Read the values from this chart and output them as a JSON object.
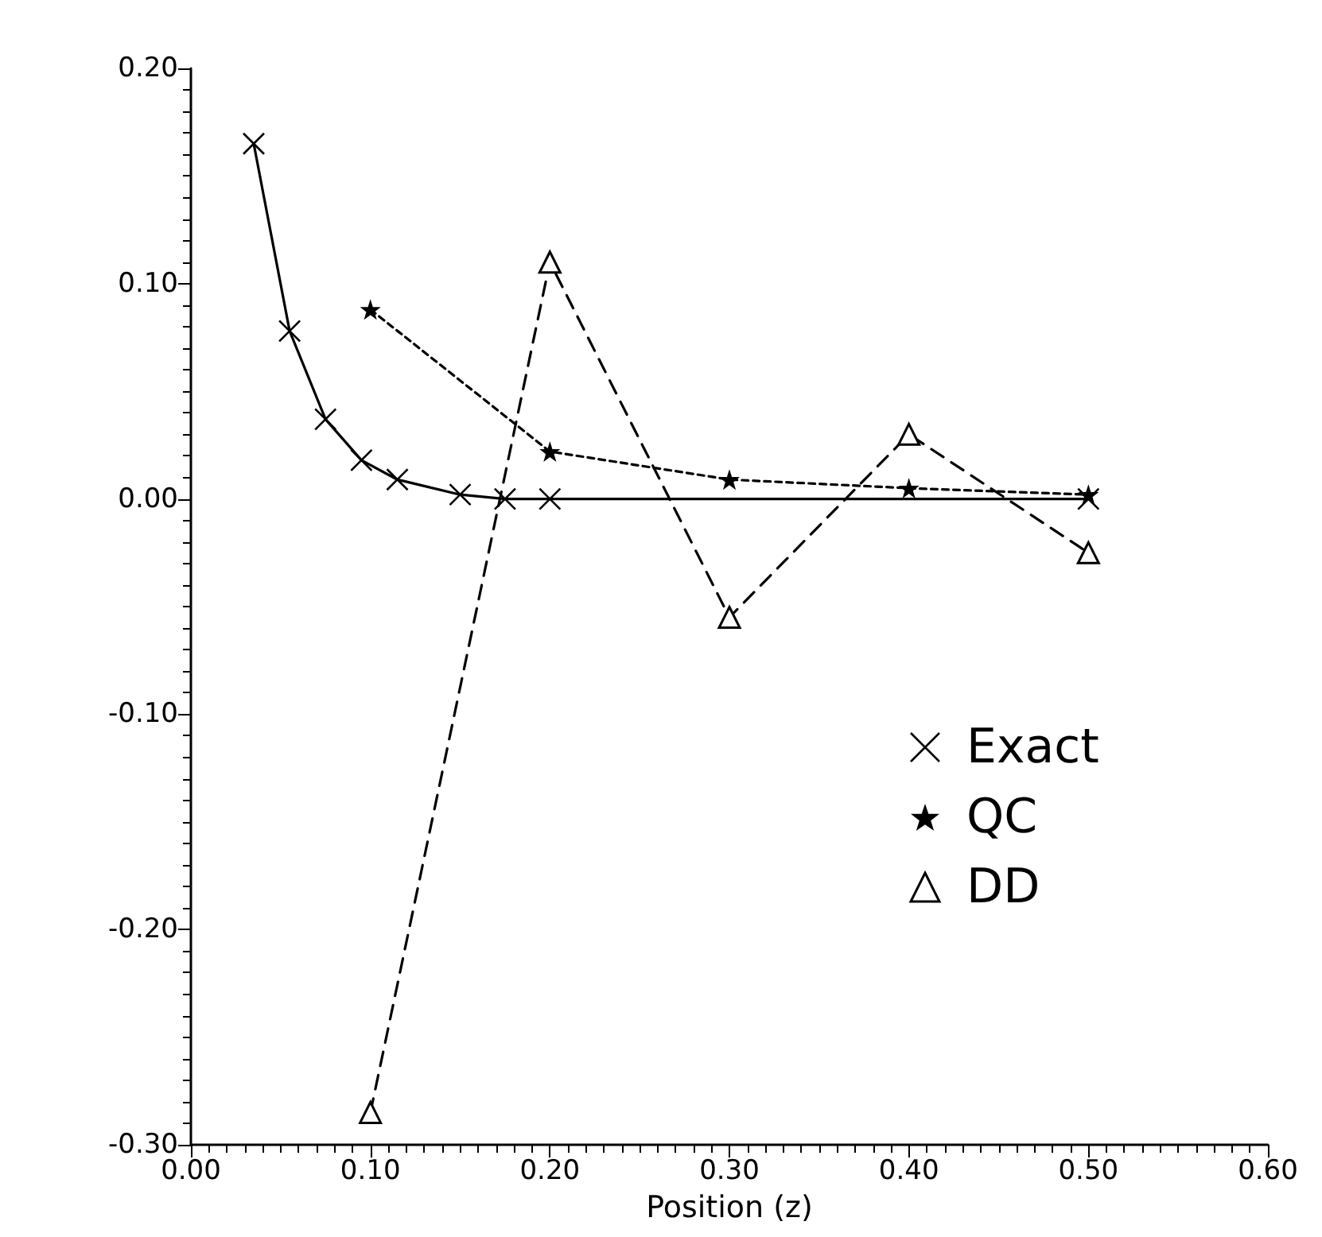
{
  "chart_data": {
    "type": "line",
    "xlabel": "Position (z)",
    "xlim": [
      0,
      0.6
    ],
    "xticks": [
      {
        "value": 0,
        "label": "0.00"
      },
      {
        "value": 0.1,
        "label": "0.10"
      },
      {
        "value": 0.2,
        "label": "0.20"
      },
      {
        "value": 0.3,
        "label": "0.30"
      },
      {
        "value": 0.4,
        "label": "0.40"
      },
      {
        "value": 0.5,
        "label": "0.50"
      },
      {
        "value": 0.6,
        "label": "0.60"
      }
    ],
    "ylim": [
      -0.3,
      0.2
    ],
    "yticks": [
      {
        "value": -0.3,
        "label": "-0.30"
      },
      {
        "value": -0.2,
        "label": "-0.20"
      },
      {
        "value": -0.1,
        "label": "-0.10"
      },
      {
        "value": 0,
        "label": "0.00"
      },
      {
        "value": 0.1,
        "label": "0.10"
      },
      {
        "value": 0.2,
        "label": "0.20"
      }
    ],
    "grid": false,
    "legend": "right",
    "series": [
      {
        "name": "Exact",
        "color": "#000000",
        "marker": "cross",
        "line_style": "solid",
        "x": [
          0.035,
          0.055,
          0.075,
          0.095,
          0.115,
          0.15,
          0.175,
          0.2,
          0.5
        ],
        "values": [
          0.165,
          0.078,
          0.037,
          0.018,
          0.009,
          0.002,
          0,
          0,
          0
        ]
      },
      {
        "name": "QC",
        "color": "#000000",
        "marker": "star",
        "line_style": "dotted",
        "x": [
          0.1,
          0.2,
          0.3,
          0.4,
          0.5
        ],
        "values": [
          0.088,
          0.022,
          0.009,
          0.005,
          0.002
        ]
      },
      {
        "name": "DD",
        "color": "#000000",
        "marker": "triangle",
        "line_style": "dashed",
        "x": [
          0.1,
          0.2,
          0.3,
          0.4,
          0.5
        ],
        "values": [
          -0.285,
          0.11,
          -0.055,
          0.03,
          -0.025
        ]
      }
    ]
  }
}
